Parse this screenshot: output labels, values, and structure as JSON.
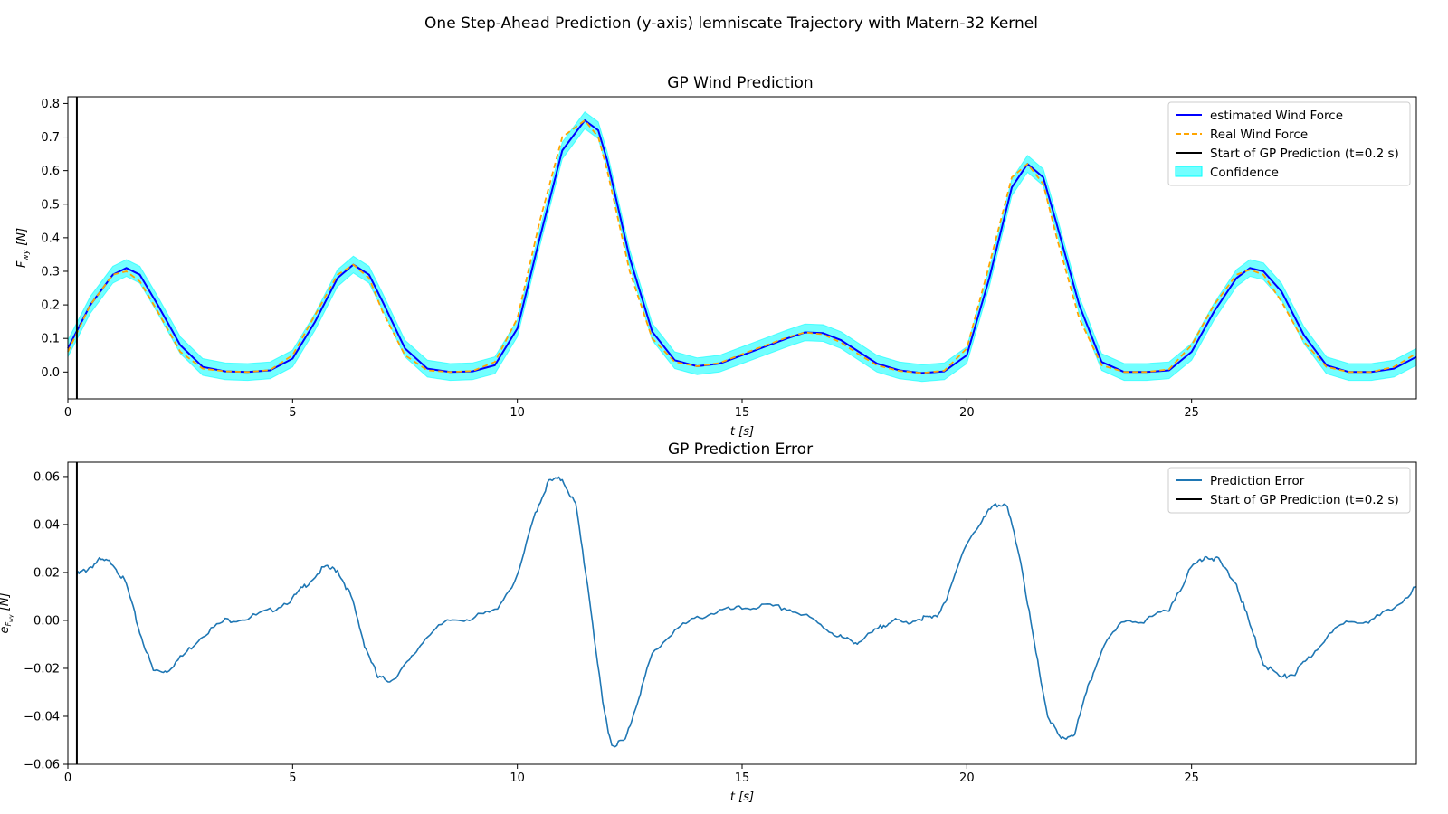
{
  "figure": {
    "suptitle": "One Step-Ahead Prediction (y-axis) lemniscate Trajectory with Matern-32 Kernel"
  },
  "colors": {
    "estimated": "#0000ff",
    "real": "#ffa500",
    "start": "#000000",
    "confidence": "#00ffff",
    "error": "#1f77b4"
  },
  "chart_data": [
    {
      "type": "line",
      "title": "GP Wind Prediction",
      "xlabel": "t [s]",
      "ylabel": "F_wy [N]",
      "xlim": [
        0,
        30
      ],
      "ylim": [
        -0.08,
        0.82
      ],
      "xticks": [
        "0",
        "5",
        "10",
        "15",
        "20",
        "25"
      ],
      "yticks": [
        "0.0",
        "0.1",
        "0.2",
        "0.3",
        "0.4",
        "0.5",
        "0.6",
        "0.7",
        "0.8"
      ],
      "legend_position": "top-right",
      "grid": false,
      "start_line_t": 0.2,
      "confidence_halfwidth": 0.025,
      "series": [
        {
          "name": "estimated Wind Force",
          "style": "solid",
          "x": [
            0,
            0.5,
            1,
            1.3,
            1.6,
            2,
            2.5,
            3,
            3.5,
            4,
            4.5,
            5,
            5.5,
            6,
            6.35,
            6.7,
            7,
            7.5,
            8,
            8.5,
            9,
            9.5,
            10,
            10.5,
            11,
            11.5,
            11.8,
            12,
            12.5,
            13,
            13.5,
            14,
            14.5,
            15,
            15.5,
            16,
            16.4,
            16.8,
            17.2,
            17.6,
            18,
            18.5,
            19,
            19.5,
            20,
            20.5,
            21,
            21.35,
            21.7,
            22,
            22.5,
            23,
            23.5,
            24,
            24.5,
            25,
            25.5,
            26,
            26.3,
            26.6,
            27,
            27.5,
            28,
            28.5,
            29,
            29.5,
            30
          ],
          "y": [
            0.07,
            0.2,
            0.29,
            0.31,
            0.29,
            0.2,
            0.08,
            0.015,
            0.002,
            0,
            0.005,
            0.04,
            0.15,
            0.28,
            0.32,
            0.29,
            0.21,
            0.07,
            0.01,
            0,
            0.002,
            0.02,
            0.13,
            0.4,
            0.66,
            0.75,
            0.72,
            0.63,
            0.34,
            0.12,
            0.035,
            0.017,
            0.025,
            0.05,
            0.075,
            0.1,
            0.118,
            0.116,
            0.095,
            0.06,
            0.025,
            0.005,
            -0.003,
            0.002,
            0.05,
            0.28,
            0.55,
            0.62,
            0.58,
            0.44,
            0.2,
            0.03,
            0,
            0,
            0.005,
            0.06,
            0.18,
            0.28,
            0.31,
            0.3,
            0.24,
            0.11,
            0.02,
            0,
            0,
            0.01,
            0.045
          ]
        },
        {
          "name": "Real Wind Force",
          "style": "dashed",
          "x": [
            0,
            0.5,
            1,
            1.3,
            1.6,
            2,
            2.5,
            3,
            3.5,
            4,
            4.5,
            5,
            5.5,
            6,
            6.35,
            6.7,
            7,
            7.5,
            8,
            8.5,
            9,
            9.5,
            10,
            10.5,
            11,
            11.5,
            11.8,
            12,
            12.5,
            13,
            13.5,
            14,
            14.5,
            15,
            15.5,
            16,
            16.4,
            16.8,
            17.2,
            17.6,
            18,
            18.5,
            19,
            19.5,
            20,
            20.5,
            21,
            21.35,
            21.7,
            22,
            22.5,
            23,
            23.5,
            24,
            24.5,
            25,
            25.5,
            26,
            26.3,
            26.6,
            27,
            27.5,
            28,
            28.5,
            29,
            29.5,
            30
          ],
          "y": [
            0.06,
            0.2,
            0.29,
            0.3,
            0.27,
            0.18,
            0.06,
            0.01,
            0.002,
            0,
            0.006,
            0.05,
            0.17,
            0.29,
            0.32,
            0.28,
            0.18,
            0.05,
            0.005,
            0,
            0.003,
            0.03,
            0.16,
            0.45,
            0.7,
            0.75,
            0.7,
            0.6,
            0.3,
            0.1,
            0.03,
            0.017,
            0.027,
            0.053,
            0.078,
            0.103,
            0.118,
            0.112,
            0.088,
            0.052,
            0.02,
            0.003,
            -0.003,
            0.004,
            0.07,
            0.32,
            0.58,
            0.62,
            0.56,
            0.4,
            0.16,
            0.02,
            0,
            0,
            0.008,
            0.08,
            0.2,
            0.29,
            0.305,
            0.29,
            0.21,
            0.09,
            0.015,
            0,
            0,
            0.015,
            0.055
          ]
        }
      ],
      "legend": [
        {
          "label": "estimated Wind Force",
          "kind": "line"
        },
        {
          "label": "Real Wind Force",
          "kind": "dashed"
        },
        {
          "label": "Start of GP Prediction (t=0.2 s)",
          "kind": "line"
        },
        {
          "label": "Confidence",
          "kind": "patch"
        }
      ]
    },
    {
      "type": "line",
      "title": "GP Prediction Error",
      "xlabel": "t [s]",
      "ylabel": "e_Fwy [N]",
      "xlim": [
        0,
        30
      ],
      "ylim": [
        -0.06,
        0.066
      ],
      "xticks": [
        "0",
        "5",
        "10",
        "15",
        "20",
        "25"
      ],
      "yticks": [
        "−0.06",
        "−0.04",
        "−0.02",
        "0.00",
        "0.02",
        "0.04",
        "0.06"
      ],
      "legend_position": "top-right",
      "grid": false,
      "start_line_t": 0.2,
      "series": [
        {
          "name": "Prediction Error",
          "x": [
            0.2,
            0.4,
            0.7,
            1,
            1.3,
            1.6,
            1.9,
            2.2,
            2.6,
            3,
            3.5,
            4,
            4.5,
            5,
            5.3,
            5.7,
            6,
            6.3,
            6.6,
            6.9,
            7.2,
            7.6,
            8,
            8.5,
            9,
            9.5,
            10,
            10.4,
            10.7,
            11,
            11.3,
            11.6,
            11.9,
            12.1,
            12.4,
            12.7,
            13,
            13.5,
            14,
            14.5,
            15,
            15.5,
            16,
            16.5,
            17,
            17.3,
            17.6,
            18,
            18.3,
            18.6,
            19,
            19.3,
            19.6,
            20,
            20.3,
            20.6,
            20.9,
            21.2,
            21.5,
            21.8,
            22.1,
            22.4,
            22.7,
            23,
            23.5,
            24,
            24.5,
            25,
            25.3,
            25.6,
            26,
            26.3,
            26.6,
            27,
            27.3,
            27.6,
            28,
            28.5,
            29,
            29.5,
            30
          ],
          "y": [
            0.019,
            0.021,
            0.025,
            0.024,
            0.015,
            -0.005,
            -0.021,
            -0.021,
            -0.014,
            -0.006,
            0,
            0.001,
            0.004,
            0.009,
            0.015,
            0.022,
            0.021,
            0.01,
            -0.01,
            -0.024,
            -0.025,
            -0.017,
            -0.006,
            0,
            0.001,
            0.004,
            0.018,
            0.045,
            0.058,
            0.059,
            0.048,
            0.01,
            -0.035,
            -0.052,
            -0.05,
            -0.032,
            -0.014,
            -0.004,
            0.001,
            0.004,
            0.005,
            0.006,
            0.005,
            0.001,
            -0.005,
            -0.008,
            -0.009,
            -0.004,
            0,
            -0.001,
            0.001,
            0.001,
            0.011,
            0.033,
            0.04,
            0.049,
            0.047,
            0.025,
            -0.01,
            -0.04,
            -0.05,
            -0.047,
            -0.028,
            -0.012,
            0,
            0,
            0.005,
            0.022,
            0.027,
            0.025,
            0.015,
            -0.002,
            -0.018,
            -0.024,
            -0.022,
            -0.016,
            -0.007,
            0,
            0,
            0.005,
            0.014
          ]
        }
      ],
      "legend": [
        {
          "label": "Prediction Error",
          "kind": "line"
        },
        {
          "label": "Start of GP Prediction (t=0.2 s)",
          "kind": "line"
        }
      ]
    }
  ]
}
